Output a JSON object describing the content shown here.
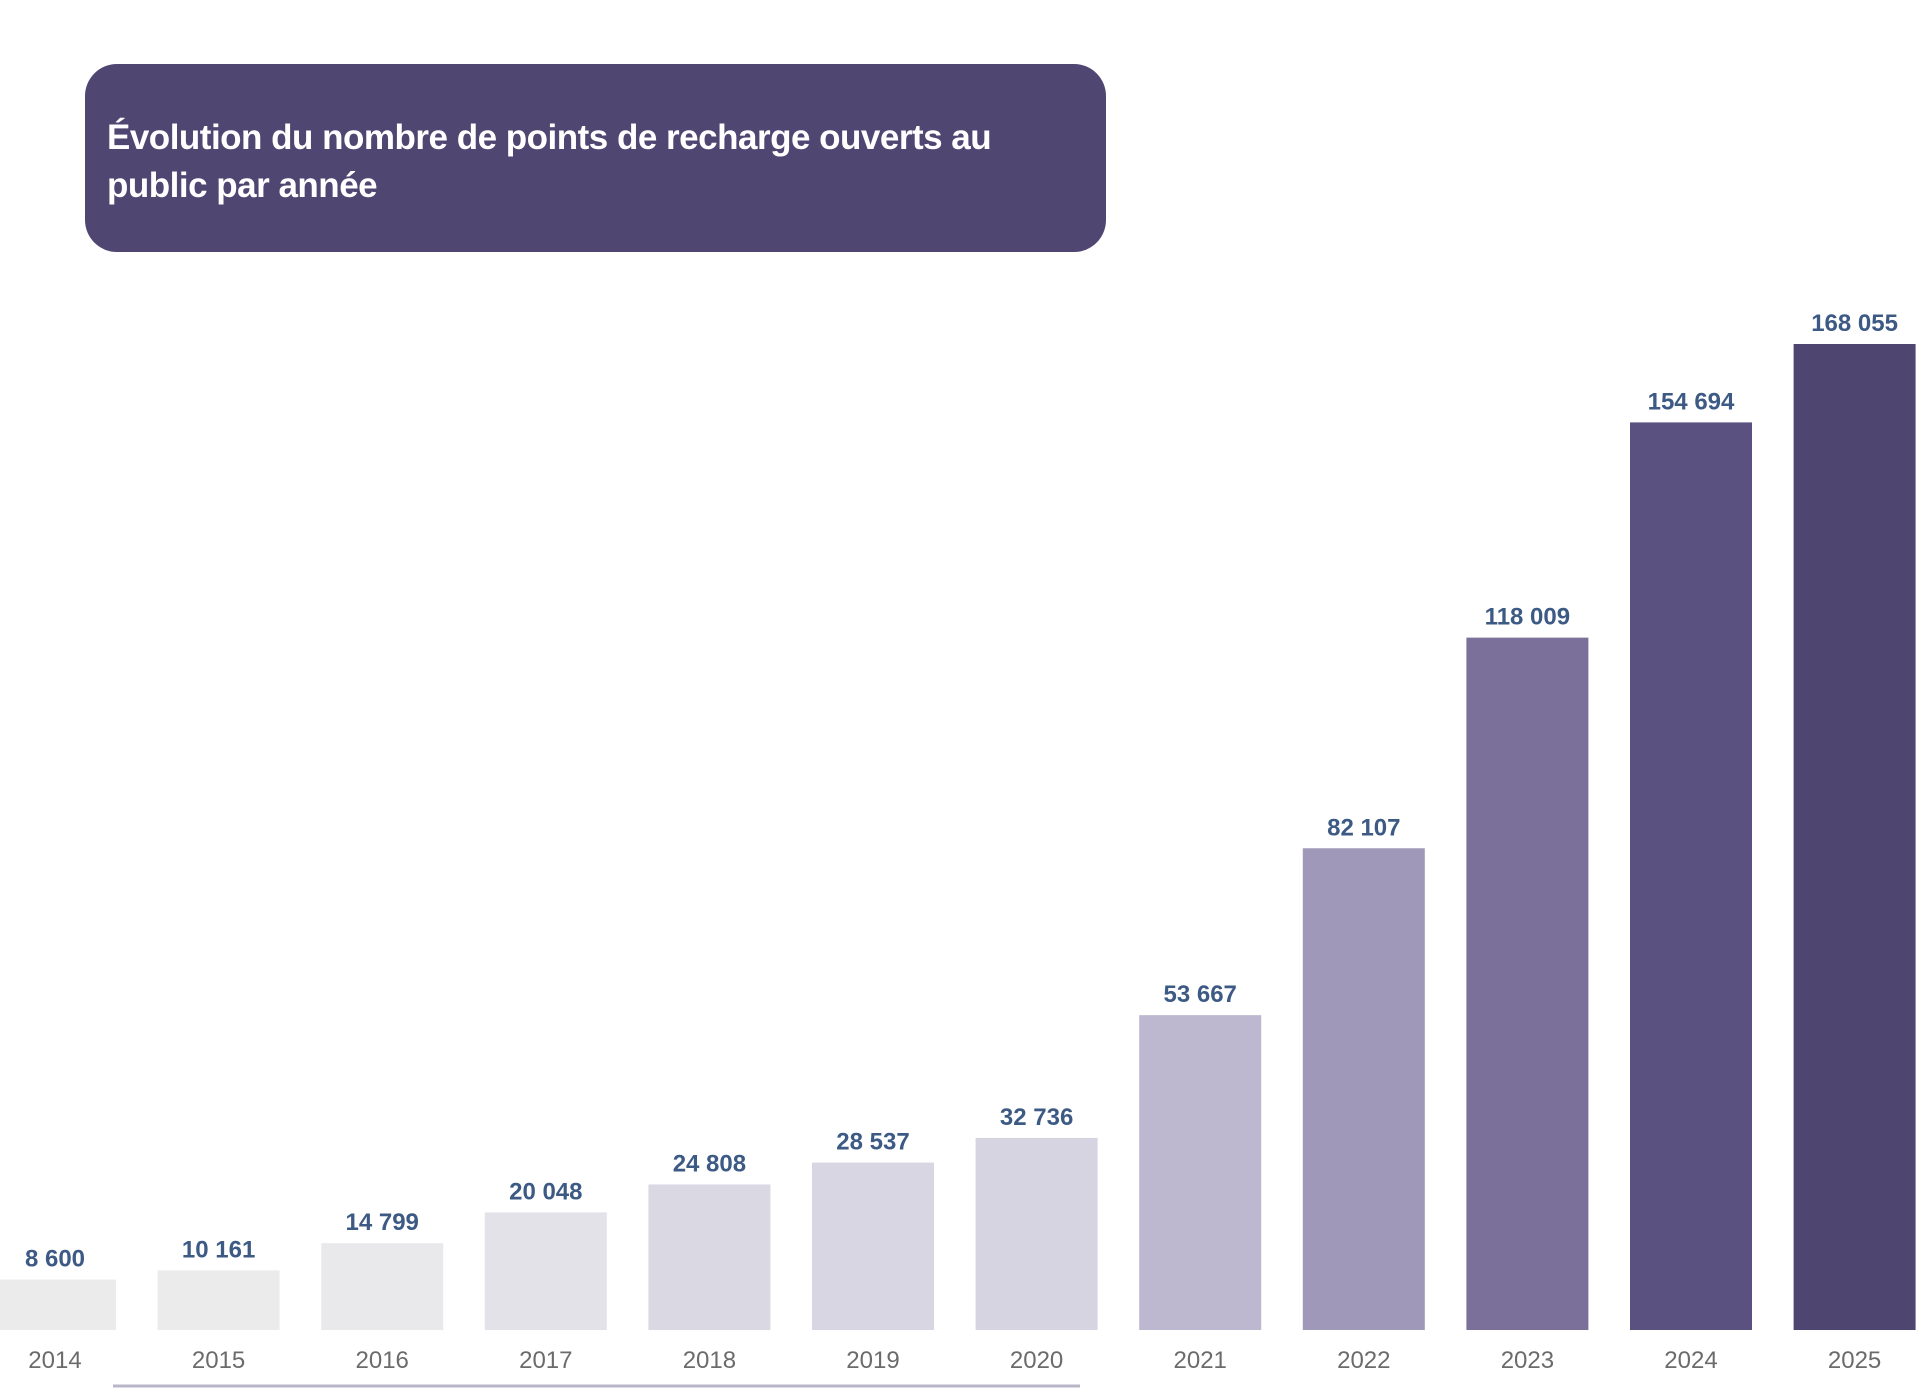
{
  "chart_data": {
    "type": "bar",
    "title": "Évolution du nombre de points de recharge ouverts au public par année",
    "xlabel": "",
    "ylabel": "",
    "ylim": [
      0,
      168055
    ],
    "grid": false,
    "categories": [
      "2014",
      "2015",
      "2016",
      "2017",
      "2018",
      "2019",
      "2020",
      "2021",
      "2022",
      "2023",
      "2024",
      "2025"
    ],
    "values": [
      8600,
      10161,
      14799,
      20048,
      24808,
      28537,
      32736,
      53667,
      82107,
      118009,
      154694,
      168055
    ],
    "value_labels": [
      "8 600",
      "10 161",
      "14 799",
      "20 048",
      "24 808",
      "28 537",
      "32 736",
      "53 667",
      "82 107",
      "118 009",
      "154 694",
      "168 055"
    ],
    "colors": [
      "#ebebeb",
      "#ebebeb",
      "#e9e9eb",
      "#e3e2e8",
      "#dad8e3",
      "#d8d6e2",
      "#d6d4e0",
      "#bdb8d0",
      "#9f98b8",
      "#7b7099",
      "#5b5180",
      "#4e4671"
    ],
    "label_color": "#3d5a85",
    "title_bg": "#4f4672"
  }
}
